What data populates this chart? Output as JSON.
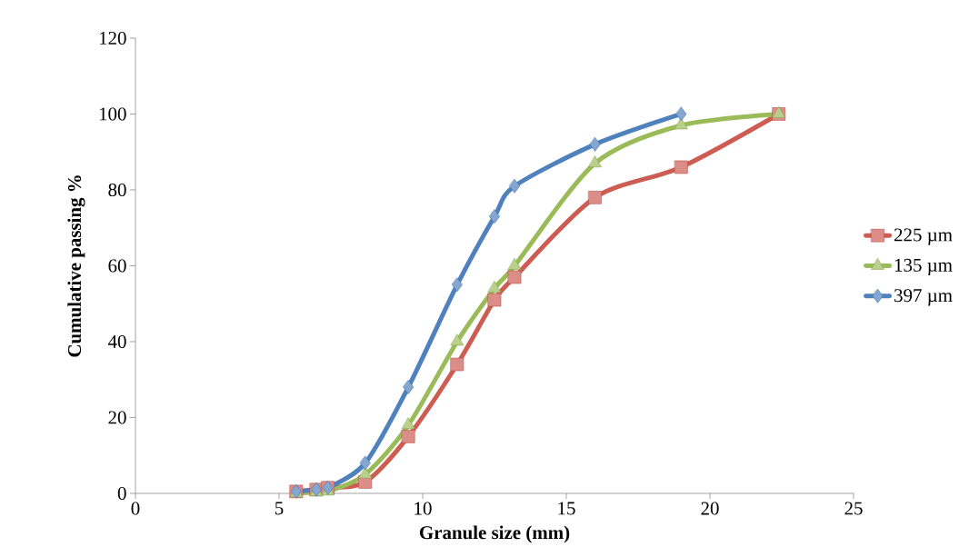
{
  "chart_data": {
    "type": "line",
    "xlabel": "Granule size (mm)",
    "ylabel": "Cumulative passing %",
    "x": [
      5.6,
      6.3,
      6.7,
      8,
      9.5,
      11.2,
      12.5,
      13.2,
      16,
      19,
      22.4
    ],
    "series": [
      {
        "name": "225 µm",
        "color": "#cd5c53",
        "marker": "square",
        "values": [
          0.5,
          1,
          1.5,
          3,
          15,
          34,
          51,
          57,
          78,
          86,
          100
        ]
      },
      {
        "name": "135 µm",
        "color": "#9bbb59",
        "marker": "triangle",
        "values": [
          0,
          0.3,
          0.5,
          5,
          18,
          40,
          54,
          60,
          87,
          97,
          100
        ]
      },
      {
        "name": "397 µm",
        "color": "#4f81bd",
        "marker": "diamond",
        "values": [
          0.5,
          1,
          1.5,
          8,
          28,
          55,
          73,
          81,
          92,
          100,
          null
        ]
      }
    ],
    "xlim": [
      0,
      25
    ],
    "xticks": [
      0,
      5,
      10,
      15,
      20,
      25
    ],
    "ylim": [
      0,
      120
    ],
    "yticks": [
      0,
      20,
      40,
      60,
      80,
      100,
      120
    ],
    "grid": false,
    "legend": "right",
    "line_style": "solid"
  }
}
